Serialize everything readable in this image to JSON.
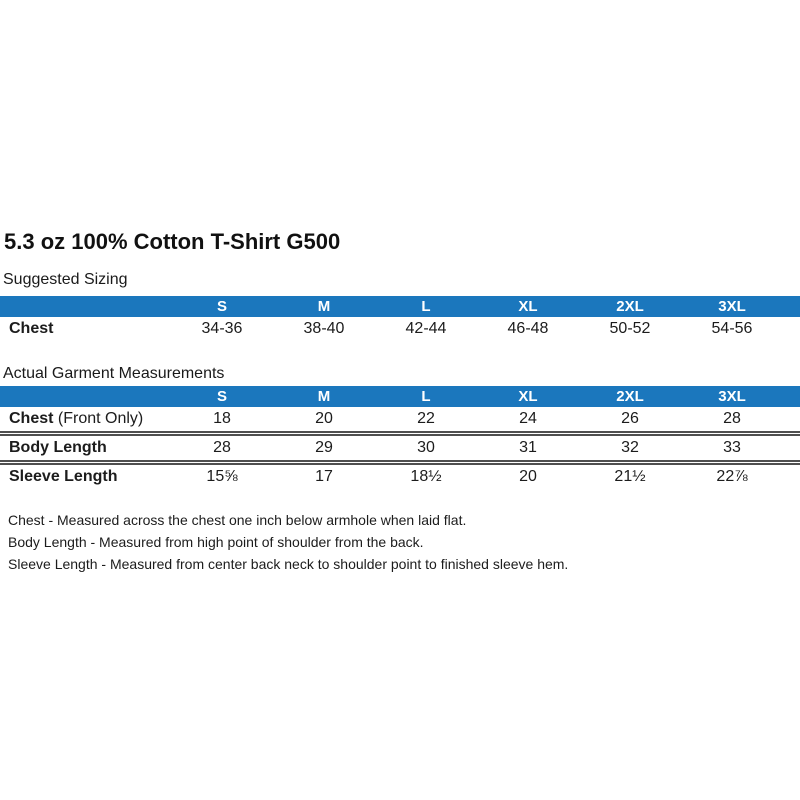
{
  "page": {
    "title": "5.3 oz 100% Cotton T-Shirt G500"
  },
  "colors": {
    "header_bg": "#1B77BD",
    "header_text": "#FFFFFF"
  },
  "suggested_sizing": {
    "heading": "Suggested Sizing",
    "columns": [
      "S",
      "M",
      "L",
      "XL",
      "2XL",
      "3XL"
    ],
    "rows": [
      {
        "label": "Chest",
        "label_suffix": "",
        "values": [
          "34-36",
          "38-40",
          "42-44",
          "46-48",
          "50-52",
          "54-56"
        ]
      }
    ]
  },
  "actual_measurements": {
    "heading": "Actual Garment Measurements",
    "columns": [
      "S",
      "M",
      "L",
      "XL",
      "2XL",
      "3XL"
    ],
    "rows": [
      {
        "label": "Chest",
        "label_suffix": " (Front Only)",
        "values": [
          "18",
          "20",
          "22",
          "24",
          "26",
          "28"
        ]
      },
      {
        "label": "Body Length",
        "label_suffix": "",
        "values": [
          "28",
          "29",
          "30",
          "31",
          "32",
          "33"
        ]
      },
      {
        "label": "Sleeve Length",
        "label_suffix": "",
        "values": [
          "15⅝",
          "17",
          "18½",
          "20",
          "21½",
          "22⅞"
        ]
      }
    ]
  },
  "notes": [
    "Chest - Measured across the chest one inch below armhole when laid flat.",
    "Body Length - Measured from high point of shoulder from the back.",
    "Sleeve Length - Measured from center back neck to shoulder point to finished sleeve hem."
  ]
}
